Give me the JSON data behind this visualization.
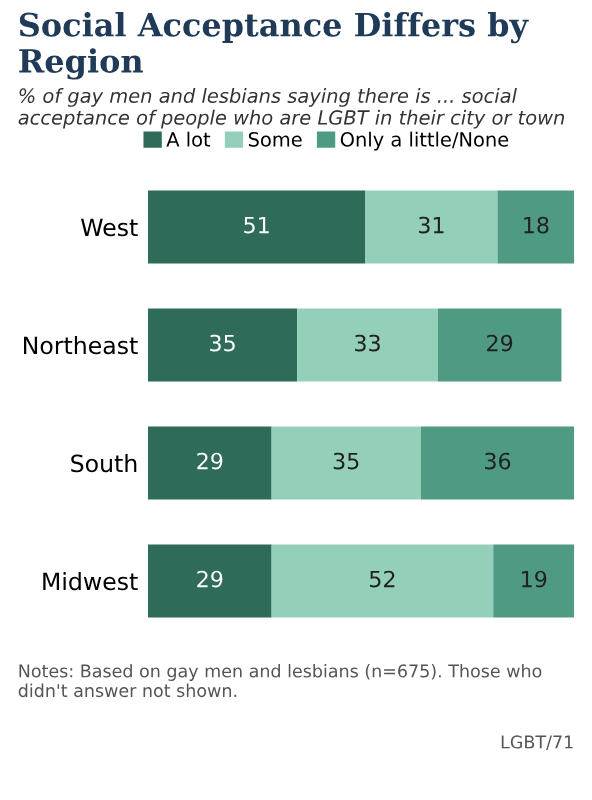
{
  "chart_data": {
    "type": "bar",
    "orientation": "horizontal",
    "stacked": true,
    "title": "Social Acceptance Differs by Region",
    "subtitle": "% of gay men and lesbians saying there is ... social acceptance of people who are LGBT in their city or town",
    "categories": [
      "West",
      "Northeast",
      "South",
      "Midwest"
    ],
    "series": [
      {
        "name": "A lot",
        "color": "#2e6b58",
        "values": [
          51,
          35,
          29,
          29
        ]
      },
      {
        "name": "Some",
        "color": "#93cfb9",
        "values": [
          31,
          33,
          35,
          52
        ]
      },
      {
        "name": "Only a little/None",
        "color": "#4f9a82",
        "values": [
          18,
          29,
          36,
          19
        ]
      }
    ],
    "data_labels": true,
    "legend": "top",
    "grid": false,
    "tick_labels": "y",
    "annotations": [
      "Notes: Based on gay men and lesbians (n=675). Those who didn't answer not shown.",
      "LGBT/71"
    ]
  }
}
